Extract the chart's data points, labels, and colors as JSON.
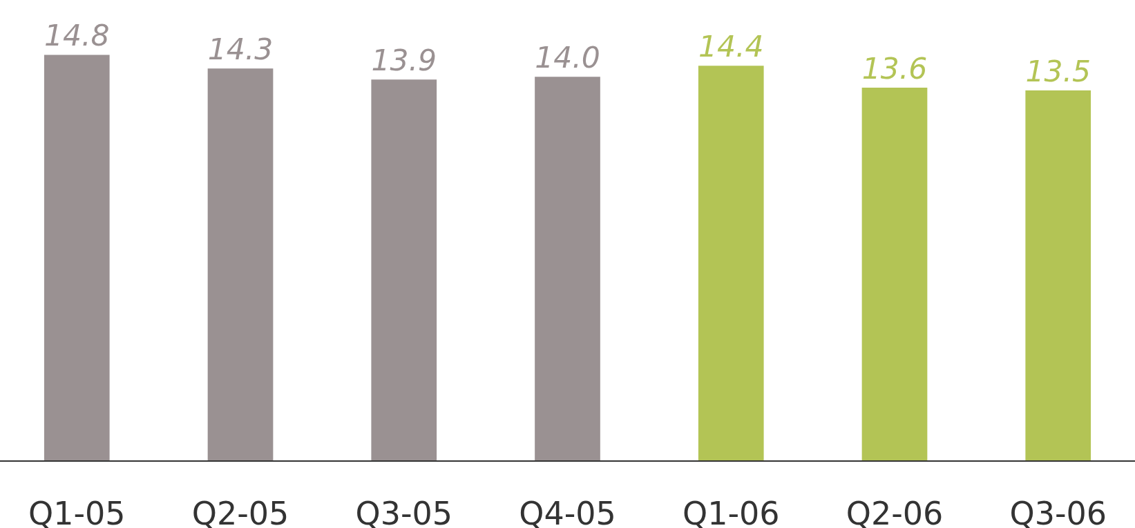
{
  "chart_data": {
    "type": "bar",
    "categories": [
      "Q1-05",
      "Q2-05",
      "Q3-05",
      "Q4-05",
      "Q1-06",
      "Q2-06",
      "Q3-06"
    ],
    "values": [
      14.8,
      14.3,
      13.9,
      14.0,
      14.4,
      13.6,
      13.5
    ],
    "value_labels": [
      "14.8",
      "14.3",
      "13.9",
      "14.0",
      "14.4",
      "13.6",
      "13.5"
    ],
    "colors": [
      "#9a9192",
      "#9a9192",
      "#9a9192",
      "#9a9192",
      "#b3c455",
      "#b3c455",
      "#b3c455"
    ],
    "ylim": [
      0,
      16.8
    ],
    "grid": false,
    "legend": false
  }
}
